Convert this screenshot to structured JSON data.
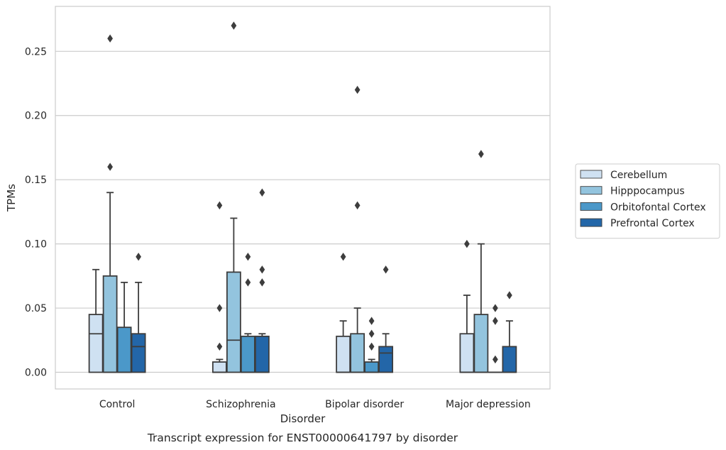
{
  "chart_data": {
    "type": "box",
    "title": "",
    "caption": "Transcript expression for ENST00000641797 by disorder",
    "xlabel": "Disorder",
    "ylabel": "TPMs",
    "ylim": [
      -0.013,
      0.285
    ],
    "yticks": [
      0.0,
      0.05,
      0.1,
      0.15,
      0.2,
      0.25
    ],
    "ytick_labels": [
      "0.00",
      "0.05",
      "0.10",
      "0.15",
      "0.20",
      "0.25"
    ],
    "grid": "horizontal",
    "legend_position": "right",
    "categories": [
      "Control",
      "Schizophrenia",
      "Bipolar disorder",
      "Major depression"
    ],
    "series": [
      {
        "name": "Cerebellum",
        "color": "#cfe1f2",
        "boxes": [
          {
            "q1": 0.0,
            "median": 0.03,
            "q3": 0.045,
            "whisker_low": 0.0,
            "whisker_high": 0.08,
            "outliers": []
          },
          {
            "q1": 0.0,
            "median": 0.0,
            "q3": 0.008,
            "whisker_low": 0.0,
            "whisker_high": 0.01,
            "outliers": [
              0.02,
              0.05,
              0.13
            ]
          },
          {
            "q1": 0.0,
            "median": 0.0,
            "q3": 0.028,
            "whisker_low": 0.0,
            "whisker_high": 0.04,
            "outliers": [
              0.09
            ]
          },
          {
            "q1": 0.0,
            "median": 0.0,
            "q3": 0.03,
            "whisker_low": 0.0,
            "whisker_high": 0.06,
            "outliers": [
              0.1
            ]
          }
        ]
      },
      {
        "name": "Hipppocampus",
        "color": "#93c4de",
        "boxes": [
          {
            "q1": 0.0,
            "median": 0.0,
            "q3": 0.075,
            "whisker_low": 0.0,
            "whisker_high": 0.14,
            "outliers": [
              0.16,
              0.26
            ]
          },
          {
            "q1": 0.0,
            "median": 0.025,
            "q3": 0.078,
            "whisker_low": 0.0,
            "whisker_high": 0.12,
            "outliers": [
              0.27
            ]
          },
          {
            "q1": 0.0,
            "median": 0.0,
            "q3": 0.03,
            "whisker_low": 0.0,
            "whisker_high": 0.05,
            "outliers": [
              0.13,
              0.22
            ]
          },
          {
            "q1": 0.0,
            "median": 0.0,
            "q3": 0.045,
            "whisker_low": 0.0,
            "whisker_high": 0.1,
            "outliers": [
              0.17
            ]
          }
        ]
      },
      {
        "name": "Orbitofontal Cortex",
        "color": "#4b98c9",
        "boxes": [
          {
            "q1": 0.0,
            "median": 0.0,
            "q3": 0.035,
            "whisker_low": 0.0,
            "whisker_high": 0.07,
            "outliers": []
          },
          {
            "q1": 0.0,
            "median": 0.0,
            "q3": 0.028,
            "whisker_low": 0.0,
            "whisker_high": 0.03,
            "outliers": [
              0.07,
              0.09
            ]
          },
          {
            "q1": 0.0,
            "median": 0.0,
            "q3": 0.008,
            "whisker_low": 0.0,
            "whisker_high": 0.01,
            "outliers": [
              0.02,
              0.03,
              0.04
            ]
          },
          {
            "q1": 0.0,
            "median": 0.0,
            "q3": 0.0,
            "whisker_low": 0.0,
            "whisker_high": 0.0,
            "outliers": [
              0.01,
              0.04,
              0.05
            ]
          }
        ]
      },
      {
        "name": "Prefrontal Cortex",
        "color": "#2366a8",
        "boxes": [
          {
            "q1": 0.0,
            "median": 0.02,
            "q3": 0.03,
            "whisker_low": 0.0,
            "whisker_high": 0.07,
            "outliers": [
              0.09
            ]
          },
          {
            "q1": 0.0,
            "median": 0.0,
            "q3": 0.028,
            "whisker_low": 0.0,
            "whisker_high": 0.03,
            "outliers": [
              0.07,
              0.08,
              0.14
            ]
          },
          {
            "q1": 0.0,
            "median": 0.015,
            "q3": 0.02,
            "whisker_low": 0.0,
            "whisker_high": 0.03,
            "outliers": [
              0.08
            ]
          },
          {
            "q1": 0.0,
            "median": 0.0,
            "q3": 0.02,
            "whisker_low": 0.0,
            "whisker_high": 0.04,
            "outliers": [
              0.06
            ]
          }
        ]
      }
    ]
  }
}
